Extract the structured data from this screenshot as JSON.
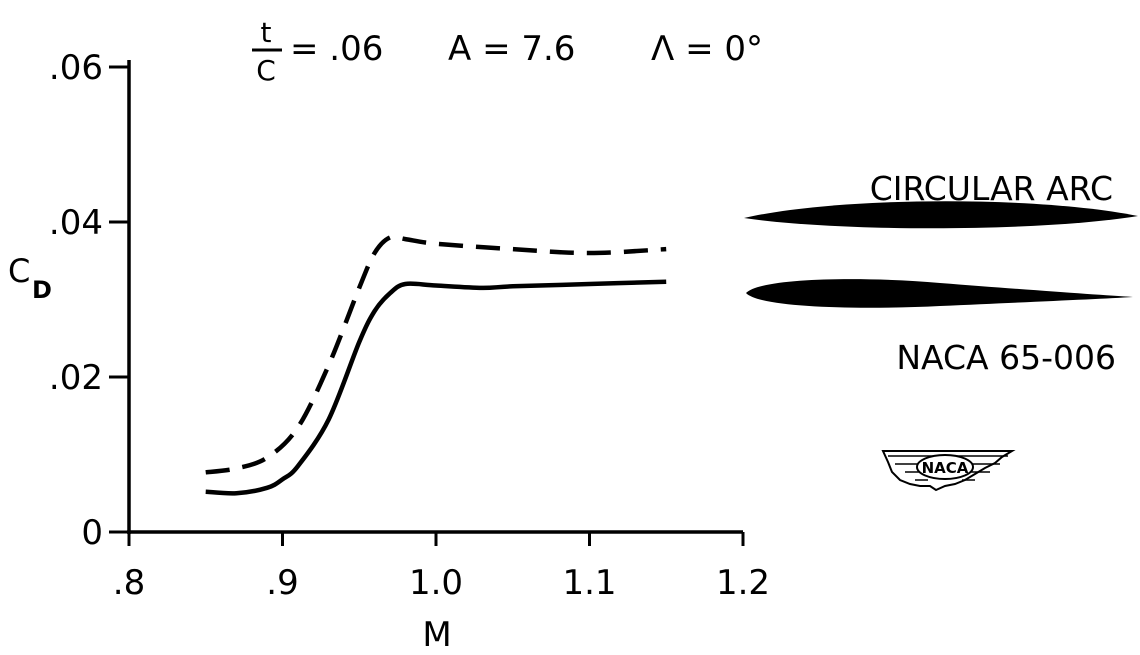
{
  "chart_data": {
    "type": "line",
    "title": {
      "ratio_numerator": "t",
      "ratio_denominator": "C",
      "ratio_value": "= .06",
      "aspect_ratio": "A = 7.6",
      "sweep": "Λ = 0°"
    },
    "xlabel": "M",
    "ylabel": "C",
    "ylabel_subscript": "D",
    "xlim": [
      0.8,
      1.2
    ],
    "ylim": [
      0,
      0.06
    ],
    "x_ticks": [
      0.8,
      0.9,
      1.0,
      1.1,
      1.2
    ],
    "x_tick_labels": [
      ".8",
      ".9",
      "1.0",
      "1.1",
      "1.2"
    ],
    "y_ticks": [
      0,
      0.02,
      0.04,
      0.06
    ],
    "y_tick_labels": [
      "0",
      ".02",
      ".04",
      ".06"
    ],
    "grid": false,
    "series": [
      {
        "name": "CIRCULAR ARC",
        "style": "dashed",
        "x": [
          0.85,
          0.87,
          0.89,
          0.91,
          0.93,
          0.95,
          0.96,
          0.97,
          0.98,
          1.0,
          1.05,
          1.1,
          1.15
        ],
        "values": [
          0.0077,
          0.0082,
          0.0096,
          0.0135,
          0.0215,
          0.0315,
          0.036,
          0.038,
          0.0378,
          0.0372,
          0.0365,
          0.036,
          0.0365
        ]
      },
      {
        "name": "NACA 65-006",
        "style": "solid",
        "x": [
          0.85,
          0.87,
          0.89,
          0.9,
          0.91,
          0.93,
          0.95,
          0.96,
          0.97,
          0.98,
          1.0,
          1.03,
          1.05,
          1.1,
          1.15
        ],
        "values": [
          0.0052,
          0.005,
          0.0057,
          0.0068,
          0.0085,
          0.0145,
          0.0245,
          0.0285,
          0.0308,
          0.032,
          0.0318,
          0.0315,
          0.0317,
          0.032,
          0.0323
        ]
      }
    ],
    "legend": {
      "placement": "right",
      "entries": [
        "CIRCULAR ARC",
        "NACA 65-006"
      ]
    },
    "logo_text": "NACA"
  },
  "colors": {
    "ink": "#000000",
    "background": "#ffffff"
  }
}
